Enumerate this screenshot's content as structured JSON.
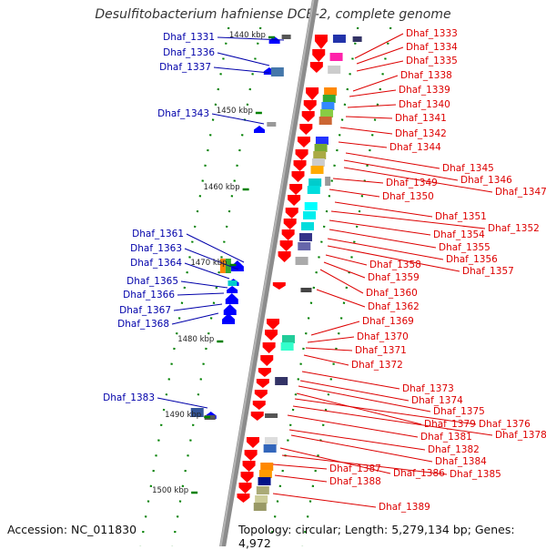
{
  "title": "Desulfitobacterium hafniense DCB-2, complete genome",
  "footer": {
    "accession": "Accession: NC_011830",
    "topology": "Topology: circular; Length: 5,279,134 bp; Genes: 4,972"
  },
  "scale_labels": [
    "1440 kbp",
    "1450 kbp",
    "1460 kbp",
    "1470 kbp",
    "1480 kbp",
    "1490 kbp",
    "1500 kbp"
  ],
  "genes_left": [
    "Dhaf_1331",
    "Dhaf_1336",
    "Dhaf_1337",
    "Dhaf_1343",
    "Dhaf_1361",
    "Dhaf_1363",
    "Dhaf_1364",
    "Dhaf_1365",
    "Dhaf_1366",
    "Dhaf_1367",
    "Dhaf_1368",
    "Dhaf_1383"
  ],
  "genes_right": [
    "Dhaf_1333",
    "Dhaf_1334",
    "Dhaf_1335",
    "Dhaf_1338",
    "Dhaf_1339",
    "Dhaf_1340",
    "Dhaf_1341",
    "Dhaf_1342",
    "Dhaf_1344",
    "Dhaf_1345",
    "Dhaf_1346",
    "Dhaf_1347",
    "Dhaf_1349",
    "Dhaf_1350",
    "Dhaf_1351",
    "Dhaf_1352",
    "Dhaf_1354",
    "Dhaf_1355",
    "Dhaf_1356",
    "Dhaf_1357",
    "Dhaf_1358",
    "Dhaf_1359",
    "Dhaf_1360",
    "Dhaf_1362",
    "Dhaf_1369",
    "Dhaf_1370",
    "Dhaf_1371",
    "Dhaf_1372",
    "Dhaf_1373",
    "Dhaf_1374",
    "Dhaf_1375",
    "Dhaf_1379",
    "Dhaf_1376",
    "Dhaf_1378",
    "Dhaf_1381",
    "Dhaf_1382",
    "Dhaf_1384",
    "Dhaf_1386",
    "Dhaf_1385",
    "Dhaf_1387",
    "Dhaf_1388",
    "Dhaf_1389"
  ],
  "colors": {
    "reverse_strand": "#ff0000",
    "forward_strand": "#0000ff",
    "backbone": "#888888",
    "scale_tick": "#008000"
  }
}
